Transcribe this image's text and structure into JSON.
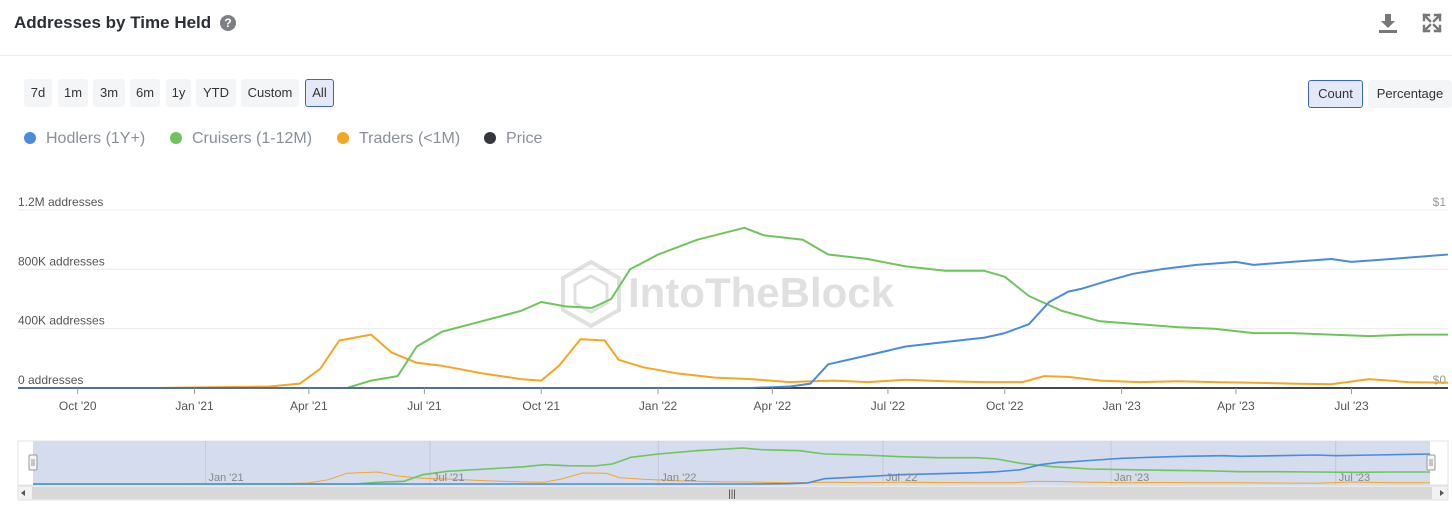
{
  "header": {
    "title": "Addresses by Time Held",
    "help_icon": "question-circle-icon",
    "download_icon": "download-icon",
    "fullscreen_icon": "expand-icon"
  },
  "range_buttons": [
    "7d",
    "1m",
    "3m",
    "6m",
    "1y",
    "YTD",
    "Custom",
    "All"
  ],
  "range_selected": "All",
  "mode_buttons": [
    "Count",
    "Percentage"
  ],
  "mode_selected": "Count",
  "legend": [
    {
      "label": "Hodlers (1Y+)",
      "color": "#4a8be0"
    },
    {
      "label": "Cruisers (1-12M)",
      "color": "#6fc45c"
    },
    {
      "label": "Traders (<1M)",
      "color": "#f5a623"
    },
    {
      "label": "Price",
      "color": "#34373d"
    }
  ],
  "watermark": "IntoTheBlock",
  "chart_data": {
    "type": "line",
    "y_left_labels": [
      "0 addresses",
      "400K addresses",
      "800K addresses",
      "1.2M addresses"
    ],
    "y_left_values": [
      0,
      400000,
      800000,
      1200000
    ],
    "y_right_labels": [
      "$0",
      "$1"
    ],
    "ylim": [
      0,
      1200000
    ],
    "xlim": [
      "2020-08-15",
      "2023-09-15"
    ],
    "x_ticks": [
      {
        "label": "Oct '20",
        "date": "2020-10-01"
      },
      {
        "label": "Jan '21",
        "date": "2021-01-01"
      },
      {
        "label": "Apr '21",
        "date": "2021-04-01"
      },
      {
        "label": "Jul '21",
        "date": "2021-07-01"
      },
      {
        "label": "Oct '21",
        "date": "2021-10-01"
      },
      {
        "label": "Jan '22",
        "date": "2022-01-01"
      },
      {
        "label": "Apr '22",
        "date": "2022-04-01"
      },
      {
        "label": "Jul '22",
        "date": "2022-07-01"
      },
      {
        "label": "Oct '22",
        "date": "2022-10-01"
      },
      {
        "label": "Jan '23",
        "date": "2023-01-01"
      },
      {
        "label": "Apr '23",
        "date": "2023-04-01"
      },
      {
        "label": "Jul '23",
        "date": "2023-07-01"
      }
    ],
    "grid": true,
    "series": [
      {
        "name": "Hodlers (1Y+)",
        "color": "#4a8be0",
        "points": [
          [
            "2020-08-15",
            0
          ],
          [
            "2022-03-15",
            0
          ],
          [
            "2022-04-15",
            10000
          ],
          [
            "2022-05-01",
            30000
          ],
          [
            "2022-05-15",
            160000
          ],
          [
            "2022-06-15",
            220000
          ],
          [
            "2022-07-15",
            280000
          ],
          [
            "2022-08-15",
            310000
          ],
          [
            "2022-09-15",
            340000
          ],
          [
            "2022-10-01",
            370000
          ],
          [
            "2022-10-20",
            430000
          ],
          [
            "2022-11-05",
            580000
          ],
          [
            "2022-11-20",
            650000
          ],
          [
            "2022-12-01",
            670000
          ],
          [
            "2022-12-20",
            720000
          ],
          [
            "2023-01-10",
            770000
          ],
          [
            "2023-02-01",
            800000
          ],
          [
            "2023-03-01",
            830000
          ],
          [
            "2023-04-01",
            850000
          ],
          [
            "2023-04-15",
            830000
          ],
          [
            "2023-05-15",
            850000
          ],
          [
            "2023-06-15",
            870000
          ],
          [
            "2023-07-01",
            850000
          ],
          [
            "2023-08-01",
            870000
          ],
          [
            "2023-09-15",
            900000
          ]
        ]
      },
      {
        "name": "Cruisers (1-12M)",
        "color": "#6fc45c",
        "points": [
          [
            "2020-08-15",
            0
          ],
          [
            "2021-05-01",
            0
          ],
          [
            "2021-05-20",
            50000
          ],
          [
            "2021-06-10",
            80000
          ],
          [
            "2021-06-25",
            280000
          ],
          [
            "2021-07-15",
            380000
          ],
          [
            "2021-08-15",
            450000
          ],
          [
            "2021-09-15",
            520000
          ],
          [
            "2021-10-01",
            580000
          ],
          [
            "2021-10-20",
            550000
          ],
          [
            "2021-11-10",
            540000
          ],
          [
            "2021-11-25",
            600000
          ],
          [
            "2021-12-10",
            800000
          ],
          [
            "2022-01-01",
            900000
          ],
          [
            "2022-02-01",
            1000000
          ],
          [
            "2022-03-10",
            1080000
          ],
          [
            "2022-03-25",
            1030000
          ],
          [
            "2022-04-25",
            1000000
          ],
          [
            "2022-05-15",
            900000
          ],
          [
            "2022-06-15",
            870000
          ],
          [
            "2022-07-15",
            820000
          ],
          [
            "2022-08-15",
            790000
          ],
          [
            "2022-09-15",
            790000
          ],
          [
            "2022-10-01",
            750000
          ],
          [
            "2022-10-20",
            620000
          ],
          [
            "2022-11-15",
            520000
          ],
          [
            "2022-12-15",
            450000
          ],
          [
            "2023-01-15",
            430000
          ],
          [
            "2023-02-15",
            410000
          ],
          [
            "2023-03-15",
            400000
          ],
          [
            "2023-04-15",
            370000
          ],
          [
            "2023-05-15",
            370000
          ],
          [
            "2023-06-15",
            360000
          ],
          [
            "2023-07-15",
            350000
          ],
          [
            "2023-08-15",
            360000
          ],
          [
            "2023-09-15",
            360000
          ]
        ]
      },
      {
        "name": "Traders (<1M)",
        "color": "#f5a623",
        "points": [
          [
            "2020-08-15",
            0
          ],
          [
            "2020-12-01",
            0
          ],
          [
            "2021-01-15",
            5000
          ],
          [
            "2021-03-01",
            10000
          ],
          [
            "2021-03-25",
            30000
          ],
          [
            "2021-04-10",
            130000
          ],
          [
            "2021-04-25",
            320000
          ],
          [
            "2021-05-20",
            360000
          ],
          [
            "2021-06-05",
            240000
          ],
          [
            "2021-06-25",
            170000
          ],
          [
            "2021-07-15",
            150000
          ],
          [
            "2021-08-15",
            100000
          ],
          [
            "2021-09-15",
            60000
          ],
          [
            "2021-10-01",
            50000
          ],
          [
            "2021-10-15",
            150000
          ],
          [
            "2021-11-01",
            330000
          ],
          [
            "2021-11-20",
            320000
          ],
          [
            "2021-12-01",
            190000
          ],
          [
            "2021-12-20",
            140000
          ],
          [
            "2022-01-15",
            100000
          ],
          [
            "2022-02-15",
            70000
          ],
          [
            "2022-03-15",
            60000
          ],
          [
            "2022-04-15",
            40000
          ],
          [
            "2022-05-01",
            45000
          ],
          [
            "2022-05-20",
            50000
          ],
          [
            "2022-06-15",
            40000
          ],
          [
            "2022-07-15",
            55000
          ],
          [
            "2022-08-15",
            45000
          ],
          [
            "2022-09-15",
            40000
          ],
          [
            "2022-10-15",
            40000
          ],
          [
            "2022-11-01",
            80000
          ],
          [
            "2022-11-20",
            75000
          ],
          [
            "2022-12-15",
            50000
          ],
          [
            "2023-01-15",
            40000
          ],
          [
            "2023-02-15",
            45000
          ],
          [
            "2023-03-15",
            40000
          ],
          [
            "2023-04-15",
            35000
          ],
          [
            "2023-05-15",
            30000
          ],
          [
            "2023-06-15",
            25000
          ],
          [
            "2023-07-15",
            60000
          ],
          [
            "2023-08-15",
            40000
          ],
          [
            "2023-09-15",
            35000
          ]
        ]
      },
      {
        "name": "Price",
        "color": "#34373d",
        "points": [
          [
            "2020-08-15",
            0
          ],
          [
            "2023-09-15",
            0
          ]
        ]
      }
    ],
    "navigator": {
      "x_ticks": [
        "Jan '21",
        "Jul '21",
        "Jan '22",
        "Jul '22",
        "Jan '23",
        "Jul '23"
      ],
      "scrollbar_grip": "|||"
    }
  }
}
